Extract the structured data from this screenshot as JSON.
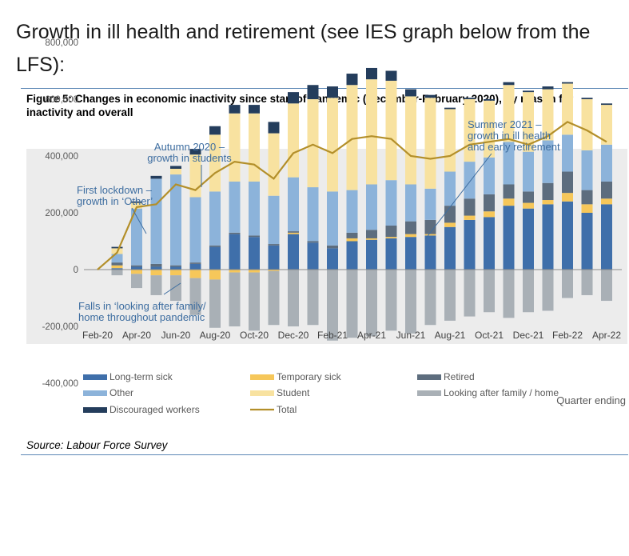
{
  "intro_text": "Growth in ill health and retirement (see IES graph below from the LFS):",
  "figure_title": "Figure 5: Changes in economic inactivity since start of pandemic (December-February 2020), by reason for inactivity and overall",
  "source": "Source: Labour Force Survey",
  "chart_data": {
    "type": "bar",
    "stacked": true,
    "categories": [
      "Feb-20",
      "Mar-20",
      "Apr-20",
      "May-20",
      "Jun-20",
      "Jul-20",
      "Aug-20",
      "Sep-20",
      "Oct-20",
      "Nov-20",
      "Dec-20",
      "Jan-21",
      "Feb-21",
      "Mar-21",
      "Apr-21",
      "May-21",
      "Jun-21",
      "Jul-21",
      "Aug-21",
      "Sep-21",
      "Oct-21",
      "Nov-21",
      "Dec-21",
      "Jan-22",
      "Feb-22",
      "Mar-22",
      "Apr-22"
    ],
    "x_tick_labels": [
      "Feb-20",
      "Apr-20",
      "Jun-20",
      "Aug-20",
      "Oct-20",
      "Dec-20",
      "Feb-21",
      "Apr-21",
      "Jun-21",
      "Aug-21",
      "Oct-21",
      "Dec-21",
      "Feb-22",
      "Apr-22"
    ],
    "xlabel": "Quarter ending",
    "ylim": [
      -400000,
      800000
    ],
    "y_ticks": [
      -400000,
      -200000,
      0,
      200000,
      400000,
      600000,
      800000
    ],
    "y_tick_labels": [
      "-400,000",
      "-200,000",
      "0",
      "200,000",
      "400,000",
      "600,000",
      "800,000"
    ],
    "grid": false,
    "legend_position": "bottom",
    "series": [
      {
        "name": "Long-term sick",
        "color": "#3f6faa",
        "values": [
          0,
          5000,
          10000,
          10000,
          10000,
          20000,
          80000,
          125000,
          115000,
          85000,
          125000,
          95000,
          75000,
          100000,
          105000,
          110000,
          115000,
          120000,
          150000,
          175000,
          185000,
          225000,
          215000,
          230000,
          240000,
          200000,
          230000
        ]
      },
      {
        "name": "Temporary sick",
        "color": "#f6c75a",
        "values": [
          0,
          10000,
          -15000,
          -20000,
          -20000,
          -30000,
          -35000,
          -10000,
          -10000,
          -5000,
          5000,
          0,
          0,
          10000,
          5000,
          5000,
          10000,
          5000,
          15000,
          15000,
          20000,
          25000,
          20000,
          15000,
          30000,
          30000,
          20000
        ]
      },
      {
        "name": "Retired",
        "color": "#5d6d7e",
        "values": [
          0,
          10000,
          5000,
          10000,
          5000,
          5000,
          5000,
          5000,
          5000,
          5000,
          5000,
          5000,
          10000,
          20000,
          30000,
          40000,
          45000,
          50000,
          60000,
          60000,
          60000,
          50000,
          40000,
          60000,
          75000,
          50000,
          60000
        ]
      },
      {
        "name": "Other",
        "color": "#8cb3da",
        "values": [
          0,
          30000,
          200000,
          300000,
          320000,
          230000,
          190000,
          180000,
          190000,
          170000,
          190000,
          190000,
          190000,
          150000,
          160000,
          160000,
          130000,
          110000,
          120000,
          130000,
          130000,
          150000,
          140000,
          150000,
          130000,
          140000,
          130000
        ]
      },
      {
        "name": "Student",
        "color": "#f8e2a0",
        "values": [
          0,
          20000,
          20000,
          0,
          20000,
          150000,
          200000,
          240000,
          240000,
          220000,
          260000,
          310000,
          330000,
          370000,
          370000,
          350000,
          310000,
          320000,
          220000,
          220000,
          200000,
          200000,
          210000,
          180000,
          180000,
          180000,
          140000
        ]
      },
      {
        "name": "Looking after family / home",
        "color": "#a9b0b6",
        "values": [
          0,
          -20000,
          -50000,
          -70000,
          -90000,
          -130000,
          -170000,
          -190000,
          -205000,
          -190000,
          -200000,
          -195000,
          -250000,
          -240000,
          -235000,
          -215000,
          -225000,
          -195000,
          -180000,
          -165000,
          -150000,
          -170000,
          -150000,
          -145000,
          -100000,
          -90000,
          -110000
        ]
      },
      {
        "name": "Discouraged workers",
        "color": "#243d5c",
        "values": [
          0,
          5000,
          5000,
          10000,
          10000,
          20000,
          30000,
          30000,
          30000,
          40000,
          40000,
          50000,
          40000,
          40000,
          40000,
          35000,
          25000,
          10000,
          5000,
          5000,
          5000,
          10000,
          5000,
          10000,
          5000,
          5000,
          5000
        ]
      },
      {
        "name": "Total",
        "color": "#b38f2a",
        "type": "line",
        "values": [
          0,
          60000,
          220000,
          230000,
          300000,
          280000,
          340000,
          380000,
          370000,
          320000,
          410000,
          440000,
          410000,
          460000,
          470000,
          460000,
          400000,
          390000,
          400000,
          440000,
          450000,
          460000,
          440000,
          470000,
          520000,
          490000,
          450000
        ]
      }
    ],
    "annotations": [
      {
        "text": "Autumn 2020 – growth in students",
        "lines": [
          "Autumn 2020 –",
          "growth in students"
        ]
      },
      {
        "text": "First lockdown – growth in ‘Other’",
        "lines": [
          "First lockdown –",
          "growth in ‘Other’"
        ]
      },
      {
        "text": "Summer 2021 – growth in ill health and early retirement",
        "lines": [
          "Summer 2021 –",
          "growth in ill health",
          "and early retirement"
        ]
      },
      {
        "text": "Falls in ‘looking after family/ home throughout pandemic",
        "lines": [
          "Falls in ‘looking after family/",
          "home throughout pandemic"
        ]
      }
    ]
  }
}
